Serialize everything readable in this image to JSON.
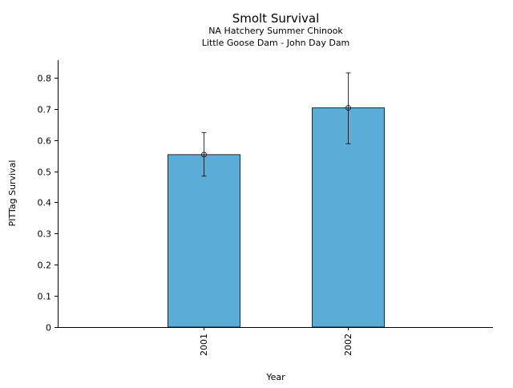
{
  "chart_data": {
    "type": "bar",
    "title": "Smolt Survival",
    "subtitle_lines": [
      "NA Hatchery Summer Chinook",
      "Little Goose Dam - John Day Dam"
    ],
    "xlabel": "Year",
    "ylabel": "PITTag Survival",
    "categories": [
      "2001",
      "2002"
    ],
    "values": [
      0.553,
      0.703
    ],
    "error_low": [
      0.484,
      0.588
    ],
    "error_high": [
      0.624,
      0.815
    ],
    "ylim": [
      0,
      0.82
    ],
    "yticks": [
      "0",
      "0.1",
      "0.2",
      "0.3",
      "0.4",
      "0.5",
      "0.6",
      "0.7",
      "0.8"
    ],
    "ytick_values": [
      0,
      0.1,
      0.2,
      0.3,
      0.4,
      0.5,
      0.6,
      0.7,
      0.8
    ],
    "bar_color": "#5badd7",
    "grid": false,
    "legend": "none"
  }
}
